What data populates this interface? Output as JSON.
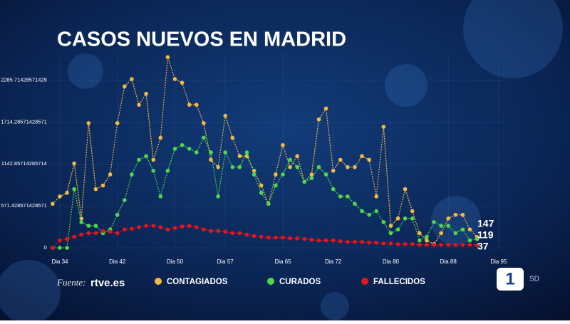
{
  "chart_data": {
    "type": "line",
    "title": "CASOS NUEVOS EN MADRID",
    "source": "Fuente:",
    "logo": "rtve.es",
    "channel": "1",
    "channel_tag": "SD",
    "x": [
      33,
      34,
      35,
      36,
      37,
      38,
      39,
      40,
      41,
      42,
      43,
      44,
      45,
      46,
      47,
      48,
      49,
      50,
      51,
      52,
      53,
      54,
      55,
      56,
      57,
      58,
      59,
      60,
      61,
      62,
      63,
      64,
      65,
      66,
      67,
      68,
      69,
      70,
      71,
      72,
      73,
      74,
      75,
      76,
      77,
      78,
      79,
      80,
      81,
      82,
      83,
      84,
      85,
      86,
      87,
      88,
      89,
      90,
      91,
      92
    ],
    "xlim": [
      32.5,
      96
    ],
    "xticks": [
      {
        "value": 34,
        "label": "Dia 34"
      },
      {
        "value": 42,
        "label": "Dia 42"
      },
      {
        "value": 50,
        "label": "Dia 50"
      },
      {
        "value": 57,
        "label": "Dia 57"
      },
      {
        "value": 65,
        "label": "Dia 65"
      },
      {
        "value": 72,
        "label": "Dia 72"
      },
      {
        "value": 80,
        "label": "Dia 80"
      },
      {
        "value": 88,
        "label": "Dia 88"
      },
      {
        "value": 95,
        "label": "Dia 95"
      }
    ],
    "ylim": [
      0,
      2650
    ],
    "yticks": [
      0,
      571.428571428571,
      1142.85714285714,
      1714.28571428571,
      2285.71428571429
    ],
    "grid": true,
    "series": [
      {
        "name": "CONTAGIADOS",
        "color": "#f5b942",
        "values": [
          600,
          700,
          750,
          1150,
          400,
          1700,
          800,
          850,
          1000,
          1700,
          2200,
          2300,
          1950,
          2100,
          1200,
          1500,
          2600,
          2300,
          2250,
          1950,
          1950,
          1700,
          1200,
          1100,
          1800,
          1500,
          1250,
          1250,
          1050,
          850,
          600,
          1000,
          1400,
          1100,
          1250,
          900,
          1000,
          1750,
          1900,
          1050,
          1200,
          1100,
          1100,
          1250,
          1200,
          700,
          1650,
          300,
          400,
          800,
          500,
          200,
          100,
          50,
          200,
          400,
          450,
          450,
          250,
          147
        ]
      },
      {
        "name": "CURADOS",
        "color": "#4fd94a",
        "values": [
          0,
          0,
          0,
          800,
          350,
          300,
          300,
          200,
          250,
          450,
          650,
          1000,
          1200,
          1250,
          1050,
          700,
          1050,
          1350,
          1400,
          1350,
          1300,
          1500,
          1300,
          700,
          1300,
          1100,
          1100,
          1300,
          1000,
          750,
          600,
          850,
          1000,
          1200,
          1100,
          900,
          950,
          1100,
          1000,
          800,
          700,
          700,
          600,
          500,
          450,
          500,
          350,
          200,
          250,
          400,
          400,
          100,
          150,
          350,
          300,
          300,
          200,
          250,
          100,
          119
        ]
      },
      {
        "name": "FALLECIDOS",
        "color": "#e8141b",
        "values": [
          0,
          100,
          120,
          150,
          180,
          200,
          200,
          230,
          220,
          200,
          250,
          260,
          280,
          300,
          300,
          280,
          250,
          270,
          290,
          300,
          280,
          250,
          230,
          230,
          220,
          200,
          200,
          180,
          160,
          150,
          140,
          140,
          140,
          130,
          130,
          120,
          110,
          100,
          100,
          100,
          90,
          80,
          80,
          80,
          70,
          70,
          60,
          60,
          50,
          50,
          50,
          40,
          40,
          40,
          40,
          40,
          40,
          40,
          40,
          37
        ]
      }
    ]
  }
}
